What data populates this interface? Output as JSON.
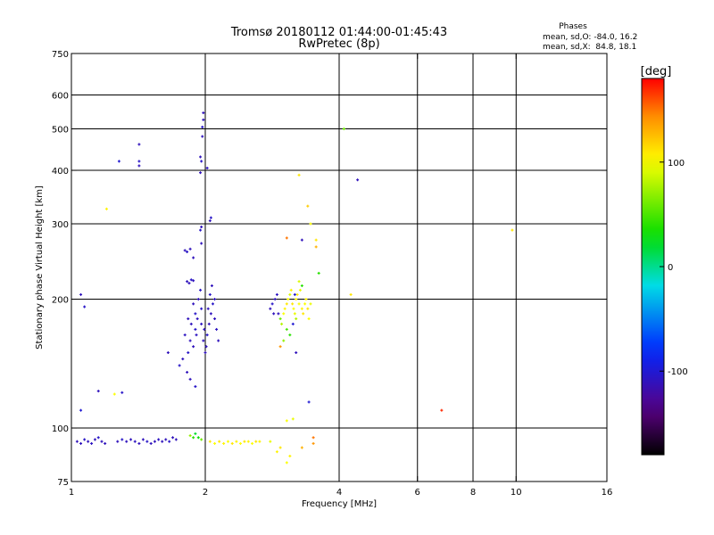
{
  "chart_data": {
    "type": "scatter",
    "title": "Tromsø 20180112 01:44:00-01:45:43",
    "subtitle": "RwPretec (8p)",
    "stats": {
      "heading": "Phases",
      "line_o": "mean, sd,O: -84.0, 16.2",
      "line_x": "mean, sd,X:  84.8, 18.1"
    },
    "xlabel": "Frequency [MHz]",
    "ylabel": "Stationary phase Virtual Height [km]",
    "x_scale": "log",
    "y_scale": "log",
    "xlim": [
      1,
      16
    ],
    "ylim": [
      75,
      750
    ],
    "x_ticks": [
      1,
      2,
      4,
      6,
      8,
      10,
      16
    ],
    "x_tick_labels": [
      "1",
      "2",
      "4",
      "6",
      "8",
      "10",
      "16"
    ],
    "x_grid": [
      2,
      4,
      6,
      8,
      10
    ],
    "y_ticks": [
      75,
      100,
      200,
      300,
      400,
      500,
      600,
      750
    ],
    "y_tick_labels": [
      "75",
      "100",
      "200",
      "300",
      "400",
      "500",
      "600",
      "750"
    ],
    "y_grid": [
      100,
      200,
      300,
      400,
      500,
      600
    ],
    "grid": true,
    "colorbar": {
      "label": "[deg]",
      "range": [
        -180,
        180
      ],
      "ticks": [
        100,
        0,
        -100
      ],
      "tick_labels": [
        "100",
        "0",
        "-100"
      ]
    },
    "points": [
      [
        1.03,
        93,
        -110
      ],
      [
        1.05,
        92,
        -110
      ],
      [
        1.07,
        94,
        -105
      ],
      [
        1.09,
        93,
        -110
      ],
      [
        1.11,
        92,
        -108
      ],
      [
        1.13,
        94,
        -110
      ],
      [
        1.15,
        95,
        -105
      ],
      [
        1.17,
        93,
        -110
      ],
      [
        1.19,
        92,
        -110
      ],
      [
        1.27,
        93,
        -110
      ],
      [
        1.3,
        94,
        -105
      ],
      [
        1.33,
        93,
        -110
      ],
      [
        1.36,
        94,
        -110
      ],
      [
        1.39,
        93,
        -108
      ],
      [
        1.42,
        92,
        -110
      ],
      [
        1.45,
        94,
        -110
      ],
      [
        1.48,
        93,
        -105
      ],
      [
        1.51,
        92,
        -110
      ],
      [
        1.54,
        93,
        -110
      ],
      [
        1.57,
        94,
        -108
      ],
      [
        1.6,
        93,
        -110
      ],
      [
        1.63,
        94,
        -110
      ],
      [
        1.66,
        93,
        -105
      ],
      [
        1.69,
        95,
        -110
      ],
      [
        1.72,
        94,
        -110
      ],
      [
        1.85,
        96,
        70
      ],
      [
        1.88,
        95,
        40
      ],
      [
        1.9,
        97,
        20
      ],
      [
        1.93,
        95,
        30
      ],
      [
        1.96,
        94,
        60
      ],
      [
        2.05,
        93,
        110
      ],
      [
        2.1,
        92,
        100
      ],
      [
        2.15,
        93,
        110
      ],
      [
        2.2,
        92,
        105
      ],
      [
        2.25,
        93,
        100
      ],
      [
        2.3,
        92,
        110
      ],
      [
        2.35,
        93,
        105
      ],
      [
        2.4,
        92,
        100
      ],
      [
        2.45,
        93,
        110
      ],
      [
        2.5,
        93,
        105
      ],
      [
        2.55,
        92,
        100
      ],
      [
        2.6,
        93,
        110
      ],
      [
        2.65,
        93,
        105
      ],
      [
        2.8,
        93,
        95
      ],
      [
        2.9,
        88,
        105
      ],
      [
        2.95,
        90,
        110
      ],
      [
        3.05,
        83,
        100
      ],
      [
        3.1,
        86,
        105
      ],
      [
        3.05,
        104,
        100
      ],
      [
        3.15,
        105,
        95
      ],
      [
        3.5,
        92,
        140
      ],
      [
        3.5,
        95,
        150
      ],
      [
        3.3,
        90,
        130
      ],
      [
        1.05,
        205,
        -110
      ],
      [
        1.07,
        192,
        -105
      ],
      [
        1.05,
        110,
        -100
      ],
      [
        1.15,
        122,
        -110
      ],
      [
        1.25,
        120,
        100
      ],
      [
        1.3,
        121,
        -105
      ],
      [
        1.2,
        325,
        105
      ],
      [
        1.28,
        420,
        -100
      ],
      [
        1.42,
        410,
        -110
      ],
      [
        1.42,
        420,
        -105
      ],
      [
        1.42,
        460,
        -110
      ],
      [
        1.65,
        150,
        -110
      ],
      [
        1.75,
        140,
        -105
      ],
      [
        1.78,
        145,
        -110
      ],
      [
        1.82,
        135,
        -110
      ],
      [
        1.83,
        150,
        -105
      ],
      [
        1.85,
        160,
        -110
      ],
      [
        1.8,
        165,
        -108
      ],
      [
        1.88,
        155,
        -110
      ],
      [
        1.9,
        170,
        -105
      ],
      [
        1.86,
        175,
        -110
      ],
      [
        1.83,
        180,
        -110
      ],
      [
        1.9,
        185,
        -105
      ],
      [
        1.88,
        195,
        -110
      ],
      [
        1.93,
        200,
        -110
      ],
      [
        1.95,
        210,
        -105
      ],
      [
        1.92,
        180,
        -110
      ],
      [
        1.96,
        175,
        -108
      ],
      [
        1.98,
        160,
        -110
      ],
      [
        2.0,
        150,
        -110
      ],
      [
        2.02,
        165,
        -105
      ],
      [
        2.04,
        175,
        -110
      ],
      [
        2.06,
        185,
        -110
      ],
      [
        2.08,
        195,
        -105
      ],
      [
        2.1,
        180,
        -110
      ],
      [
        2.12,
        170,
        -108
      ],
      [
        2.14,
        160,
        -110
      ],
      [
        2.03,
        190,
        -110
      ],
      [
        2.05,
        205,
        -105
      ],
      [
        2.07,
        215,
        -110
      ],
      [
        2.1,
        200,
        -110
      ],
      [
        1.96,
        190,
        -105
      ],
      [
        1.99,
        170,
        -110
      ],
      [
        2.01,
        155,
        -110
      ],
      [
        1.91,
        165,
        -108
      ],
      [
        1.85,
        130,
        -110
      ],
      [
        1.9,
        125,
        -105
      ],
      [
        1.82,
        220,
        -110
      ],
      [
        1.84,
        218,
        -110
      ],
      [
        1.86,
        222,
        -105
      ],
      [
        1.88,
        221,
        -110
      ],
      [
        1.8,
        260,
        -110
      ],
      [
        1.82,
        258,
        -105
      ],
      [
        1.85,
        262,
        -110
      ],
      [
        1.88,
        250,
        -110
      ],
      [
        1.95,
        290,
        -105
      ],
      [
        1.96,
        270,
        -110
      ],
      [
        1.96,
        295,
        -110
      ],
      [
        1.95,
        395,
        -110
      ],
      [
        1.96,
        420,
        -105
      ],
      [
        1.95,
        430,
        -110
      ],
      [
        1.97,
        480,
        -110
      ],
      [
        1.97,
        505,
        -105
      ],
      [
        1.98,
        525,
        -110
      ],
      [
        1.98,
        545,
        -110
      ],
      [
        2.02,
        405,
        -108
      ],
      [
        2.05,
        305,
        -110
      ],
      [
        2.06,
        310,
        -105
      ],
      [
        2.8,
        190,
        -110
      ],
      [
        2.83,
        195,
        -105
      ],
      [
        2.85,
        185,
        -110
      ],
      [
        2.87,
        200,
        -110
      ],
      [
        2.9,
        205,
        -108
      ],
      [
        2.92,
        185,
        -110
      ],
      [
        2.95,
        180,
        60
      ],
      [
        2.97,
        175,
        80
      ],
      [
        3.0,
        185,
        100
      ],
      [
        3.02,
        190,
        105
      ],
      [
        3.05,
        195,
        110
      ],
      [
        3.07,
        200,
        100
      ],
      [
        3.1,
        205,
        90
      ],
      [
        3.12,
        210,
        105
      ],
      [
        3.14,
        195,
        110
      ],
      [
        3.16,
        190,
        100
      ],
      [
        3.18,
        185,
        95
      ],
      [
        3.2,
        200,
        105
      ],
      [
        3.22,
        205,
        110
      ],
      [
        3.25,
        195,
        100
      ],
      [
        3.27,
        210,
        95
      ],
      [
        3.3,
        190,
        105
      ],
      [
        3.32,
        185,
        110
      ],
      [
        3.35,
        195,
        100
      ],
      [
        3.37,
        200,
        105
      ],
      [
        3.4,
        190,
        110
      ],
      [
        3.42,
        180,
        100
      ],
      [
        3.45,
        195,
        95
      ],
      [
        3.05,
        170,
        50
      ],
      [
        3.1,
        165,
        40
      ],
      [
        3.15,
        175,
        -100
      ],
      [
        3.0,
        160,
        70
      ],
      [
        3.2,
        180,
        80
      ],
      [
        3.25,
        220,
        90
      ],
      [
        3.3,
        215,
        40
      ],
      [
        3.18,
        205,
        -100
      ],
      [
        3.05,
        278,
        150
      ],
      [
        3.3,
        275,
        -110
      ],
      [
        3.55,
        275,
        110
      ],
      [
        3.55,
        265,
        130
      ],
      [
        3.6,
        230,
        40
      ],
      [
        3.4,
        330,
        120
      ],
      [
        3.45,
        300,
        100
      ],
      [
        3.25,
        390,
        110
      ],
      [
        3.42,
        115,
        -100
      ],
      [
        2.95,
        155,
        140
      ],
      [
        3.2,
        150,
        -110
      ],
      [
        4.1,
        500,
        60
      ],
      [
        4.25,
        205,
        110
      ],
      [
        4.4,
        380,
        -110
      ],
      [
        6.8,
        110,
        170
      ],
      [
        9.8,
        290,
        110
      ]
    ]
  }
}
